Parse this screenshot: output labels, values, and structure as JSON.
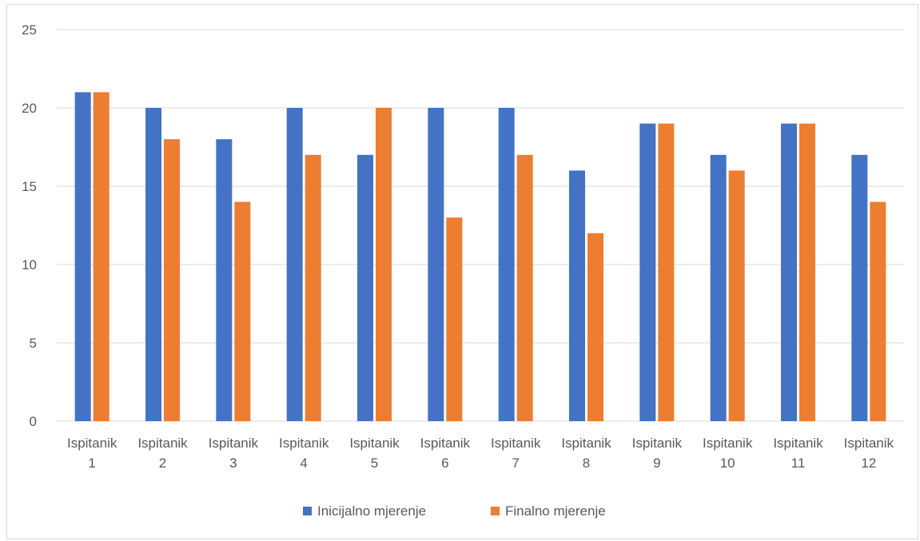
{
  "chart_data": {
    "type": "bar",
    "title": "",
    "xlabel": "",
    "ylabel": "",
    "ylim": [
      0,
      25
    ],
    "yticks": [
      0,
      5,
      10,
      15,
      20,
      25
    ],
    "grid": true,
    "legend_position": "bottom",
    "categories": [
      [
        "Ispitanik",
        "1"
      ],
      [
        "Ispitanik",
        "2"
      ],
      [
        "Ispitanik",
        "3"
      ],
      [
        "Ispitanik",
        "4"
      ],
      [
        "Ispitanik",
        "5"
      ],
      [
        "Ispitanik",
        "6"
      ],
      [
        "Ispitanik",
        "7"
      ],
      [
        "Ispitanik",
        "8"
      ],
      [
        "Ispitanik",
        "9"
      ],
      [
        "Ispitanik",
        "10"
      ],
      [
        "Ispitanik",
        "11"
      ],
      [
        "Ispitanik",
        "12"
      ]
    ],
    "series": [
      {
        "name": "Inicijalno mjerenje",
        "color": "#4472c4",
        "values": [
          21,
          20,
          18,
          20,
          17,
          20,
          20,
          16,
          19,
          17,
          19,
          17
        ]
      },
      {
        "name": "Finalno mjerenje",
        "color": "#ed7d31",
        "values": [
          21,
          18,
          14,
          17,
          20,
          13,
          17,
          12,
          19,
          16,
          19,
          14
        ]
      }
    ]
  }
}
